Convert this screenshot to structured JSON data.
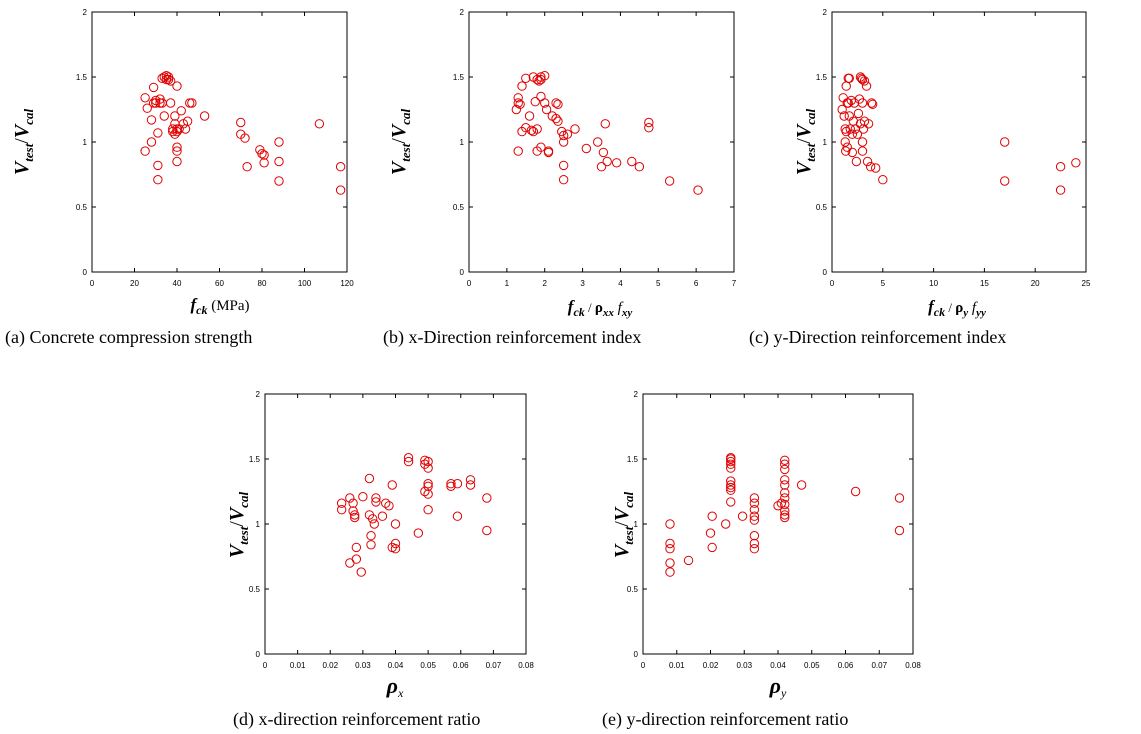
{
  "chart_data": [
    {
      "type": "scatter",
      "caption": "(a) Concrete compression strength",
      "ylabel": {
        "main": "V",
        "sub": "test",
        "sep": "/",
        "main2": "V",
        "sub2": "cal"
      },
      "xlabel": {
        "main": "f",
        "sub": "ck",
        "tail": " (MPa)"
      },
      "xlim": [
        0,
        120
      ],
      "ylim": [
        0,
        2
      ],
      "xticks": [
        "0",
        "20",
        "40",
        "60",
        "80",
        "100",
        "120"
      ],
      "yticks": [
        "0",
        "0.5",
        "1",
        "1.5",
        "2"
      ],
      "color": "#e00000",
      "points": [
        [
          25,
          1.34
        ],
        [
          25,
          0.93
        ],
        [
          26,
          1.26
        ],
        [
          28,
          1.17
        ],
        [
          28,
          1.0
        ],
        [
          29,
          1.42
        ],
        [
          29,
          1.3
        ],
        [
          30,
          1.32
        ],
        [
          30,
          1.3
        ],
        [
          31,
          1.07
        ],
        [
          31,
          0.82
        ],
        [
          31,
          0.71
        ],
        [
          32,
          1.33
        ],
        [
          32,
          1.3
        ],
        [
          33,
          1.49
        ],
        [
          33,
          1.3
        ],
        [
          34,
          1.5
        ],
        [
          34,
          1.2
        ],
        [
          35,
          1.51
        ],
        [
          35,
          1.48
        ],
        [
          36,
          1.5
        ],
        [
          36,
          1.48
        ],
        [
          37,
          1.47
        ],
        [
          37,
          1.3
        ],
        [
          38,
          1.1
        ],
        [
          38,
          1.08
        ],
        [
          39,
          1.2
        ],
        [
          39,
          1.14
        ],
        [
          39,
          1.06
        ],
        [
          40,
          1.43
        ],
        [
          40,
          1.1
        ],
        [
          40,
          1.08
        ],
        [
          40,
          0.96
        ],
        [
          40,
          0.93
        ],
        [
          40,
          0.85
        ],
        [
          41,
          1.1
        ],
        [
          42,
          1.24
        ],
        [
          43,
          1.14
        ],
        [
          44,
          1.1
        ],
        [
          45,
          1.16
        ],
        [
          46,
          1.3
        ],
        [
          47,
          1.3
        ],
        [
          53,
          1.2
        ],
        [
          70,
          1.15
        ],
        [
          70,
          1.06
        ],
        [
          72,
          1.03
        ],
        [
          73,
          0.81
        ],
        [
          79,
          0.94
        ],
        [
          80,
          0.91
        ],
        [
          81,
          0.9
        ],
        [
          81,
          0.84
        ],
        [
          88,
          1.0
        ],
        [
          88,
          0.85
        ],
        [
          88,
          0.7
        ],
        [
          107,
          1.14
        ],
        [
          117,
          0.81
        ],
        [
          117,
          0.63
        ]
      ]
    },
    {
      "type": "scatter",
      "caption": "(b) x-Direction reinforcement index",
      "ylabel": {
        "main": "V",
        "sub": "test",
        "sep": "/",
        "main2": "V",
        "sub2": "cal"
      },
      "xlabel": {
        "main": "f",
        "sub": "ck",
        "mid": " / ",
        "rho": "ρ",
        "rhosub": "xx",
        "main3": " f",
        "sub3": "xy"
      },
      "xlim": [
        0,
        7
      ],
      "ylim": [
        0,
        2
      ],
      "xticks": [
        "0",
        "1",
        "2",
        "3",
        "4",
        "5",
        "6",
        "7"
      ],
      "yticks": [
        "0",
        "0.5",
        "1",
        "1.5",
        "2"
      ],
      "color": "#e00000",
      "points": [
        [
          1.25,
          1.25
        ],
        [
          1.3,
          1.34
        ],
        [
          1.3,
          1.3
        ],
        [
          1.3,
          0.93
        ],
        [
          1.35,
          1.29
        ],
        [
          1.4,
          1.43
        ],
        [
          1.4,
          1.08
        ],
        [
          1.5,
          1.49
        ],
        [
          1.5,
          1.11
        ],
        [
          1.6,
          1.2
        ],
        [
          1.65,
          1.09
        ],
        [
          1.7,
          1.5
        ],
        [
          1.7,
          1.08
        ],
        [
          1.75,
          1.31
        ],
        [
          1.8,
          1.48
        ],
        [
          1.8,
          1.1
        ],
        [
          1.8,
          0.93
        ],
        [
          1.85,
          1.47
        ],
        [
          1.9,
          1.5
        ],
        [
          1.9,
          1.48
        ],
        [
          1.9,
          1.35
        ],
        [
          1.9,
          0.96
        ],
        [
          2.0,
          1.51
        ],
        [
          2.0,
          1.3
        ],
        [
          2.05,
          1.25
        ],
        [
          2.1,
          0.93
        ],
        [
          2.1,
          0.92
        ],
        [
          2.2,
          1.2
        ],
        [
          2.3,
          1.18
        ],
        [
          2.3,
          1.3
        ],
        [
          2.35,
          1.16
        ],
        [
          2.35,
          1.29
        ],
        [
          2.45,
          1.08
        ],
        [
          2.5,
          1.05
        ],
        [
          2.5,
          1.0
        ],
        [
          2.5,
          0.82
        ],
        [
          2.5,
          0.71
        ],
        [
          2.6,
          1.06
        ],
        [
          2.8,
          1.1
        ],
        [
          3.1,
          0.95
        ],
        [
          3.4,
          1.0
        ],
        [
          3.5,
          0.81
        ],
        [
          3.55,
          0.92
        ],
        [
          3.6,
          1.14
        ],
        [
          3.65,
          0.85
        ],
        [
          3.9,
          0.84
        ],
        [
          4.3,
          0.85
        ],
        [
          4.5,
          0.81
        ],
        [
          4.75,
          1.15
        ],
        [
          4.75,
          1.11
        ],
        [
          5.3,
          0.7
        ],
        [
          6.05,
          0.63
        ]
      ]
    },
    {
      "type": "scatter",
      "caption": "(c) y-Direction reinforcement index",
      "ylabel": {
        "main": "V",
        "sub": "test",
        "sep": "/",
        "main2": "V",
        "sub2": "cal"
      },
      "xlabel": {
        "main": "f",
        "sub": "ck",
        "mid": " / ",
        "rho": "ρ",
        "rhosub": "y",
        "main3": " f",
        "sub3": "yy"
      },
      "xlim": [
        0,
        25
      ],
      "ylim": [
        0,
        2
      ],
      "xticks": [
        "0",
        "5",
        "10",
        "15",
        "20",
        "25"
      ],
      "yticks": [
        "0",
        "0.5",
        "1",
        "1.5",
        "2"
      ],
      "color": "#e00000",
      "points": [
        [
          1.0,
          1.25
        ],
        [
          1.1,
          1.34
        ],
        [
          1.2,
          1.2
        ],
        [
          1.3,
          1.1
        ],
        [
          1.3,
          1.0
        ],
        [
          1.35,
          0.93
        ],
        [
          1.4,
          1.43
        ],
        [
          1.4,
          1.08
        ],
        [
          1.5,
          1.3
        ],
        [
          1.5,
          0.96
        ],
        [
          1.6,
          1.49
        ],
        [
          1.6,
          1.3
        ],
        [
          1.7,
          1.49
        ],
        [
          1.7,
          1.2
        ],
        [
          1.8,
          1.1
        ],
        [
          1.9,
          1.32
        ],
        [
          2.0,
          1.06
        ],
        [
          2.0,
          0.92
        ],
        [
          2.1,
          1.16
        ],
        [
          2.2,
          1.3
        ],
        [
          2.3,
          1.1
        ],
        [
          2.4,
          0.85
        ],
        [
          2.5,
          1.06
        ],
        [
          2.6,
          1.22
        ],
        [
          2.7,
          1.33
        ],
        [
          2.8,
          1.5
        ],
        [
          2.8,
          1.14
        ],
        [
          2.9,
          1.49
        ],
        [
          3.0,
          1.48
        ],
        [
          3.0,
          1.3
        ],
        [
          3.0,
          1.0
        ],
        [
          3.0,
          0.93
        ],
        [
          3.1,
          1.1
        ],
        [
          3.2,
          1.47
        ],
        [
          3.2,
          1.16
        ],
        [
          3.4,
          1.43
        ],
        [
          3.5,
          0.85
        ],
        [
          3.6,
          1.14
        ],
        [
          3.8,
          0.81
        ],
        [
          3.9,
          1.3
        ],
        [
          4.0,
          1.29
        ],
        [
          4.3,
          0.8
        ],
        [
          5.0,
          0.71
        ],
        [
          17.0,
          1.0
        ],
        [
          17.0,
          0.7
        ],
        [
          22.5,
          0.81
        ],
        [
          22.5,
          0.63
        ],
        [
          24.0,
          0.84
        ]
      ]
    },
    {
      "type": "scatter",
      "caption": "(d) x-direction reinforcement ratio",
      "ylabel": {
        "main": "V",
        "sub": "test",
        "sep": "/",
        "main2": "V",
        "sub2": "cal"
      },
      "xlabel": {
        "rho": "ρ",
        "rhosub": "x"
      },
      "xlim": [
        0,
        0.08
      ],
      "ylim": [
        0,
        2
      ],
      "xticks": [
        "0",
        "0.01",
        "0.02",
        "0.03",
        "0.04",
        "0.05",
        "0.06",
        "0.07",
        "0.08"
      ],
      "yticks": [
        "0",
        "0.5",
        "1",
        "1.5",
        "2"
      ],
      "color": "#e00000",
      "points": [
        [
          0.0235,
          1.16
        ],
        [
          0.0235,
          1.11
        ],
        [
          0.026,
          1.2
        ],
        [
          0.026,
          0.7
        ],
        [
          0.027,
          1.16
        ],
        [
          0.027,
          1.1
        ],
        [
          0.0275,
          1.07
        ],
        [
          0.0275,
          1.05
        ],
        [
          0.028,
          0.82
        ],
        [
          0.028,
          0.73
        ],
        [
          0.0295,
          0.63
        ],
        [
          0.03,
          1.21
        ],
        [
          0.032,
          1.35
        ],
        [
          0.032,
          1.07
        ],
        [
          0.0325,
          0.91
        ],
        [
          0.0325,
          0.84
        ],
        [
          0.033,
          1.04
        ],
        [
          0.0335,
          1.0
        ],
        [
          0.034,
          1.2
        ],
        [
          0.034,
          1.17
        ],
        [
          0.036,
          1.06
        ],
        [
          0.037,
          1.16
        ],
        [
          0.038,
          1.14
        ],
        [
          0.039,
          1.3
        ],
        [
          0.039,
          0.82
        ],
        [
          0.04,
          1.0
        ],
        [
          0.04,
          0.85
        ],
        [
          0.04,
          0.81
        ],
        [
          0.044,
          1.51
        ],
        [
          0.044,
          1.48
        ],
        [
          0.047,
          0.93
        ],
        [
          0.049,
          1.49
        ],
        [
          0.049,
          1.46
        ],
        [
          0.049,
          1.25
        ],
        [
          0.05,
          1.48
        ],
        [
          0.05,
          1.43
        ],
        [
          0.05,
          1.31
        ],
        [
          0.05,
          1.29
        ],
        [
          0.05,
          1.23
        ],
        [
          0.05,
          1.11
        ],
        [
          0.057,
          1.31
        ],
        [
          0.057,
          1.29
        ],
        [
          0.059,
          1.31
        ],
        [
          0.059,
          1.06
        ],
        [
          0.063,
          1.34
        ],
        [
          0.063,
          1.3
        ],
        [
          0.068,
          1.2
        ],
        [
          0.068,
          0.95
        ]
      ]
    },
    {
      "type": "scatter",
      "caption": "(e) y-direction reinforcement ratio",
      "ylabel": {
        "main": "V",
        "sub": "test",
        "sep": "/",
        "main2": "V",
        "sub2": "cal"
      },
      "xlabel": {
        "rho": "ρ",
        "rhosub": "y"
      },
      "xlim": [
        0,
        0.08
      ],
      "ylim": [
        0,
        2
      ],
      "xticks": [
        "0",
        "0.01",
        "0.02",
        "0.03",
        "0.04",
        "0.05",
        "0.06",
        "0.07",
        "0.08"
      ],
      "yticks": [
        "0",
        "0.5",
        "1",
        "1.5",
        "2"
      ],
      "color": "#e00000",
      "points": [
        [
          0.008,
          1.0
        ],
        [
          0.008,
          0.85
        ],
        [
          0.008,
          0.81
        ],
        [
          0.008,
          0.7
        ],
        [
          0.008,
          0.63
        ],
        [
          0.0135,
          0.72
        ],
        [
          0.02,
          0.93
        ],
        [
          0.0205,
          1.06
        ],
        [
          0.0205,
          0.82
        ],
        [
          0.0245,
          1.0
        ],
        [
          0.026,
          1.51
        ],
        [
          0.026,
          1.5
        ],
        [
          0.026,
          1.48
        ],
        [
          0.026,
          1.46
        ],
        [
          0.026,
          1.43
        ],
        [
          0.026,
          1.33
        ],
        [
          0.026,
          1.3
        ],
        [
          0.026,
          1.28
        ],
        [
          0.026,
          1.26
        ],
        [
          0.026,
          1.17
        ],
        [
          0.0295,
          1.06
        ],
        [
          0.033,
          1.2
        ],
        [
          0.033,
          1.16
        ],
        [
          0.033,
          1.11
        ],
        [
          0.033,
          1.06
        ],
        [
          0.033,
          1.03
        ],
        [
          0.033,
          0.91
        ],
        [
          0.033,
          0.85
        ],
        [
          0.033,
          0.81
        ],
        [
          0.04,
          1.14
        ],
        [
          0.041,
          1.16
        ],
        [
          0.042,
          1.49
        ],
        [
          0.042,
          1.46
        ],
        [
          0.042,
          1.42
        ],
        [
          0.042,
          1.34
        ],
        [
          0.042,
          1.3
        ],
        [
          0.042,
          1.24
        ],
        [
          0.042,
          1.2
        ],
        [
          0.042,
          1.15
        ],
        [
          0.042,
          1.1
        ],
        [
          0.042,
          1.07
        ],
        [
          0.042,
          1.05
        ],
        [
          0.047,
          1.3
        ],
        [
          0.063,
          1.25
        ],
        [
          0.076,
          1.2
        ],
        [
          0.076,
          0.95
        ]
      ]
    }
  ]
}
